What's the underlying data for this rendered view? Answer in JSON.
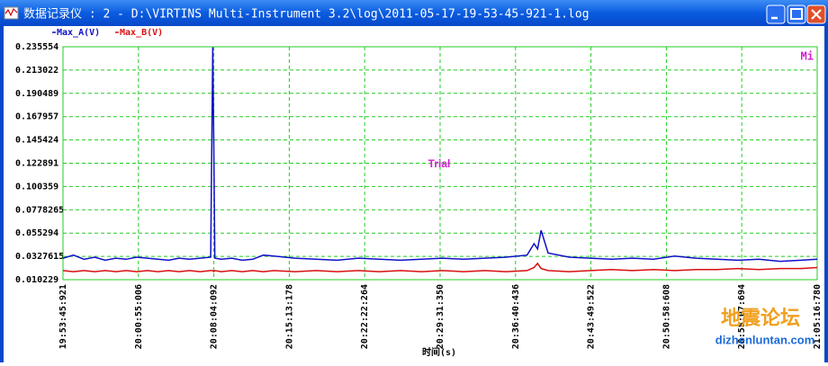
{
  "window": {
    "title": "数据记录仪 : 2 - D:\\VIRTINS Multi-Instrument 3.2\\log\\2011-05-17-19-53-45-921-1.log"
  },
  "chart_data": {
    "type": "line",
    "xlabel": "时间(s)",
    "annotations": [
      "Trial",
      "Mi"
    ],
    "watermark": [
      "地震论坛",
      "dizhenluntan.com"
    ],
    "x": [
      0,
      60,
      120,
      180,
      240,
      300,
      360,
      420,
      480,
      540,
      600,
      660,
      720,
      780,
      840,
      852,
      858,
      864,
      900,
      960,
      1020,
      1080,
      1140,
      1200,
      1320,
      1440,
      1560,
      1680,
      1800,
      1920,
      2040,
      2160,
      2280,
      2400,
      2520,
      2640,
      2680,
      2700,
      2720,
      2760,
      2880,
      3000,
      3120,
      3240,
      3360,
      3480,
      3600,
      3720,
      3840,
      3960,
      4080,
      4200,
      4290.859
    ],
    "series": [
      {
        "name": "Max_A(V)",
        "color": "#1010c8",
        "values": [
          0.031,
          0.034,
          0.03,
          0.032,
          0.029,
          0.031,
          0.03,
          0.032,
          0.031,
          0.03,
          0.029,
          0.031,
          0.03,
          0.031,
          0.032,
          0.235,
          0.135,
          0.031,
          0.03,
          0.031,
          0.029,
          0.03,
          0.034,
          0.033,
          0.031,
          0.03,
          0.029,
          0.031,
          0.03,
          0.029,
          0.03,
          0.031,
          0.03,
          0.031,
          0.032,
          0.034,
          0.045,
          0.04,
          0.058,
          0.036,
          0.032,
          0.031,
          0.03,
          0.031,
          0.03,
          0.033,
          0.031,
          0.03,
          0.029,
          0.03,
          0.028,
          0.029,
          0.03
        ]
      },
      {
        "name": "Max_B(V)",
        "color": "#d81010",
        "values": [
          0.019,
          0.018,
          0.019,
          0.018,
          0.019,
          0.018,
          0.019,
          0.018,
          0.019,
          0.018,
          0.019,
          0.018,
          0.019,
          0.018,
          0.019,
          0.019,
          0.018,
          0.019,
          0.018,
          0.019,
          0.018,
          0.019,
          0.018,
          0.019,
          0.018,
          0.019,
          0.018,
          0.019,
          0.018,
          0.019,
          0.018,
          0.019,
          0.018,
          0.019,
          0.018,
          0.019,
          0.022,
          0.026,
          0.021,
          0.019,
          0.018,
          0.019,
          0.02,
          0.019,
          0.02,
          0.019,
          0.02,
          0.02,
          0.021,
          0.02,
          0.021,
          0.021,
          0.022
        ]
      }
    ],
    "xlim": [
      0,
      4290.859
    ],
    "xticks": [
      {
        "value": 0,
        "label": "19:53:45:921"
      },
      {
        "value": 429.085,
        "label": "20:00:55:006"
      },
      {
        "value": 858.171,
        "label": "20:08:04:092"
      },
      {
        "value": 1287.257,
        "label": "20:15:13:178"
      },
      {
        "value": 1716.343,
        "label": "20:22:22:264"
      },
      {
        "value": 2145.429,
        "label": "20:29:31:350"
      },
      {
        "value": 2574.515,
        "label": "20:36:40:436"
      },
      {
        "value": 3003.601,
        "label": "20:43:49:522"
      },
      {
        "value": 3432.687,
        "label": "20:50:58:608"
      },
      {
        "value": 3861.773,
        "label": "20:58:07:694"
      },
      {
        "value": 4290.859,
        "label": "21:05:16:780"
      }
    ],
    "ylim": [
      0.010229,
      0.235554
    ],
    "yticks": [
      0.010229,
      0.0327615,
      0.055294,
      0.0778265,
      0.100359,
      0.122891,
      0.145424,
      0.167957,
      0.190489,
      0.213022,
      0.235554
    ],
    "grid": true
  }
}
